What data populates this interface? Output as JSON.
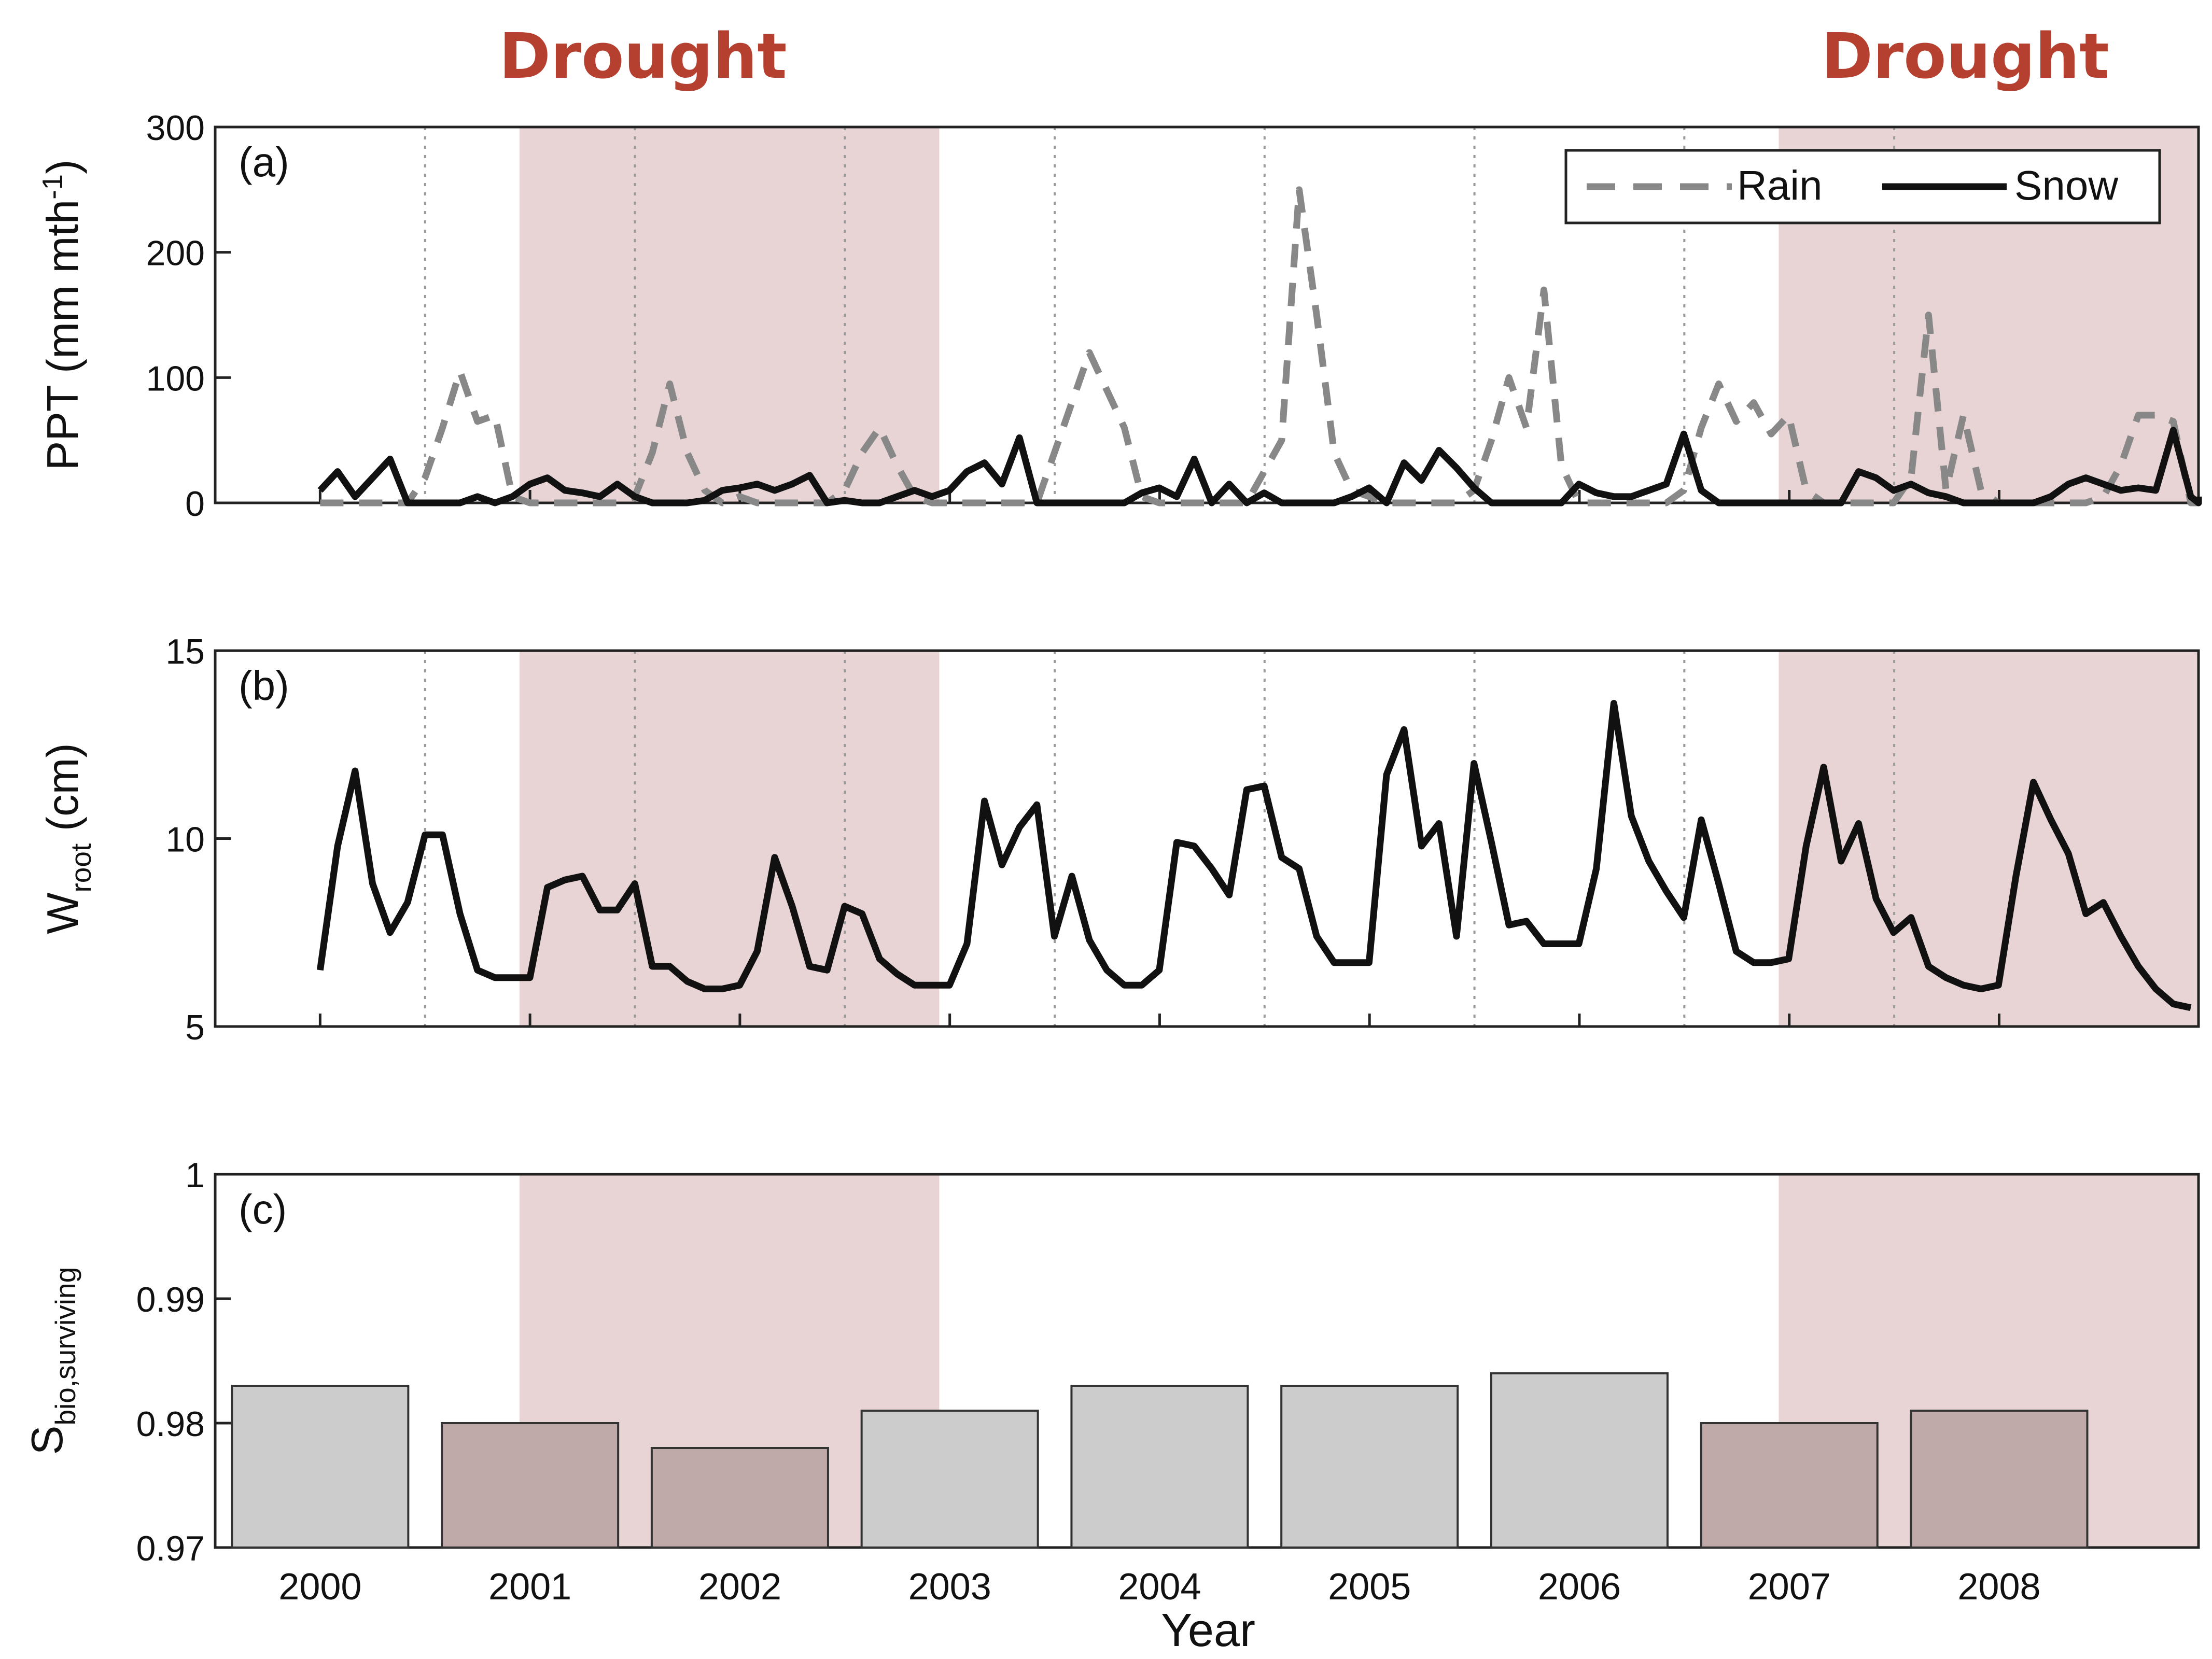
{
  "annotations": {
    "drought_left": "Drought",
    "drought_right": "Drought",
    "drought_color": "#b5402f",
    "shade_color": "#e8d4d4"
  },
  "chart_data": [
    {
      "type": "line",
      "panel": "(a)",
      "ylabel": "PPT (mm mth",
      "ylabel_sup": "-1",
      "ylabel_close": ")",
      "ylim": [
        0,
        300
      ],
      "yticks": [
        0,
        100,
        200,
        300
      ],
      "legend_placement": "top-right",
      "drought_spans": [
        [
          2000.95,
          2002.95
        ],
        [
          2006.95,
          2008.95
        ]
      ],
      "series": [
        {
          "name": "Rain",
          "style": "dashed",
          "color": "#888888",
          "x_start": 2000.0,
          "x_step": 0.0833,
          "values": [
            0,
            0,
            0,
            0,
            0,
            0,
            20,
            60,
            105,
            65,
            70,
            5,
            0,
            0,
            0,
            0,
            0,
            0,
            5,
            40,
            95,
            40,
            10,
            0,
            5,
            0,
            0,
            0,
            0,
            0,
            10,
            40,
            60,
            30,
            5,
            0,
            0,
            0,
            0,
            0,
            0,
            0,
            40,
            80,
            120,
            90,
            60,
            5,
            0,
            0,
            0,
            0,
            0,
            0,
            25,
            50,
            250,
            150,
            40,
            10,
            5,
            0,
            0,
            0,
            0,
            0,
            10,
            50,
            100,
            60,
            170,
            30,
            0,
            0,
            0,
            0,
            0,
            0,
            10,
            60,
            95,
            65,
            80,
            55,
            70,
            10,
            0,
            0,
            0,
            0,
            0,
            20,
            150,
            10,
            70,
            10,
            0,
            0,
            0,
            0,
            0,
            0,
            5,
            30,
            70,
            70,
            65,
            0,
            0,
            0,
            0,
            0,
            0,
            0
          ]
        },
        {
          "name": "Snow",
          "style": "solid",
          "color": "#111111",
          "x_start": 2000.0,
          "x_step": 0.0833,
          "values": [
            10,
            25,
            5,
            20,
            35,
            0,
            0,
            0,
            0,
            5,
            0,
            5,
            15,
            20,
            10,
            8,
            5,
            15,
            5,
            0,
            0,
            0,
            2,
            10,
            12,
            15,
            10,
            15,
            22,
            0,
            2,
            0,
            0,
            5,
            10,
            5,
            10,
            25,
            32,
            15,
            52,
            0,
            0,
            0,
            0,
            0,
            0,
            8,
            12,
            5,
            35,
            0,
            15,
            0,
            8,
            0,
            0,
            0,
            0,
            5,
            12,
            0,
            32,
            18,
            42,
            28,
            12,
            0,
            0,
            0,
            0,
            0,
            15,
            8,
            5,
            5,
            10,
            15,
            55,
            10,
            0,
            0,
            0,
            0,
            0,
            0,
            0,
            0,
            25,
            20,
            10,
            15,
            8,
            5,
            0,
            0,
            0,
            0,
            0,
            5,
            15,
            20,
            15,
            10,
            12,
            10,
            58,
            5,
            0,
            0,
            0,
            0,
            3,
            5
          ]
        }
      ]
    },
    {
      "type": "line",
      "panel": "(b)",
      "ylabel": "W",
      "ylabel_sub": "root",
      "ylabel_unit": " (cm)",
      "ylim": [
        5,
        15
      ],
      "yticks": [
        5,
        10,
        15
      ],
      "drought_spans": [
        [
          2000.95,
          2002.95
        ],
        [
          2006.95,
          2008.95
        ]
      ],
      "series": [
        {
          "name": "Wroot",
          "color": "#111111",
          "x_start": 2000.0,
          "x_step": 0.0833,
          "values": [
            6.5,
            9.8,
            11.8,
            8.8,
            7.5,
            8.3,
            10.1,
            10.1,
            8.0,
            6.5,
            6.3,
            6.3,
            6.3,
            8.7,
            8.9,
            9.0,
            8.1,
            8.1,
            8.8,
            6.6,
            6.6,
            6.2,
            6.0,
            6.0,
            6.1,
            7.0,
            9.5,
            8.2,
            6.6,
            6.5,
            8.2,
            8.0,
            6.8,
            6.4,
            6.1,
            6.1,
            6.1,
            7.2,
            11.0,
            9.3,
            10.3,
            10.9,
            7.4,
            9.0,
            7.3,
            6.5,
            6.1,
            6.1,
            6.5,
            9.9,
            9.8,
            9.2,
            8.5,
            11.3,
            11.4,
            9.5,
            9.2,
            7.4,
            6.7,
            6.7,
            6.7,
            11.7,
            12.9,
            9.8,
            10.4,
            7.4,
            12.0,
            9.9,
            7.7,
            7.8,
            7.2,
            7.2,
            7.2,
            9.2,
            13.6,
            10.6,
            9.4,
            8.6,
            7.9,
            10.5,
            8.8,
            7.0,
            6.7,
            6.7,
            6.8,
            9.8,
            11.9,
            9.4,
            10.4,
            8.4,
            7.5,
            7.9,
            6.6,
            6.3,
            6.1,
            6.0,
            6.1,
            9.0,
            11.5,
            10.5,
            9.6,
            8.0,
            8.3,
            7.4,
            6.6,
            6.0,
            5.6,
            5.5
          ]
        }
      ]
    },
    {
      "type": "bar",
      "panel": "(c)",
      "ylabel": "S",
      "ylabel_sub": "bio,surviving",
      "xlabel": "Year",
      "ylim": [
        0.97,
        1
      ],
      "yticks": [
        "0.97",
        "0.98",
        "0.99",
        "1"
      ],
      "categories": [
        "2000",
        "2001",
        "2002",
        "2003",
        "2004",
        "2005",
        "2006",
        "2007",
        "2008"
      ],
      "values": [
        0.983,
        0.98,
        0.978,
        0.981,
        0.983,
        0.983,
        0.984,
        0.98,
        0.981
      ],
      "drought": [
        false,
        true,
        true,
        false,
        false,
        false,
        false,
        true,
        true
      ],
      "bar_color_normal": "#cccccc",
      "bar_color_drought": "#bfa9a9",
      "drought_spans": [
        [
          2000.95,
          2002.95
        ],
        [
          2006.95,
          2008.95
        ]
      ]
    }
  ]
}
